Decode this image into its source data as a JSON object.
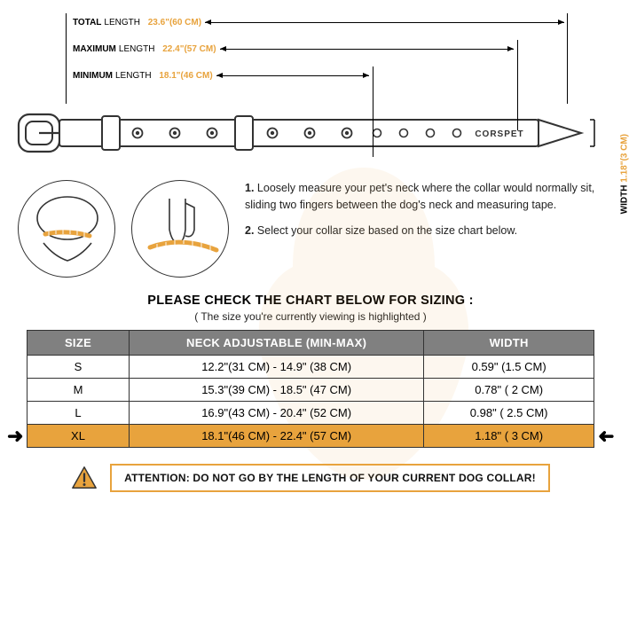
{
  "dims": {
    "total": {
      "label": "TOTAL",
      "sub": "LENGTH",
      "value": "23.6\"(60 CM)"
    },
    "max": {
      "label": "MAXIMUM",
      "sub": "LENGTH",
      "value": "22.4\"(57 CM)"
    },
    "min": {
      "label": "MINIMUM",
      "sub": "LENGTH",
      "value": "18.1\"(46 CM)"
    },
    "width": {
      "label": "WIDTH",
      "value": "1.18\"(3 CM)"
    }
  },
  "brand": "CORSPET",
  "instructions": {
    "step1_n": "1.",
    "step1": "Loosely measure your pet's neck where the collar would normally sit, sliding two fingers between the dog's neck and measuring tape.",
    "step2_n": "2.",
    "step2": "Select your collar size based on the size chart below."
  },
  "chart": {
    "title": "PLEASE CHECK THE CHART BELOW FOR SIZING :",
    "subtitle": "( The size you're currently viewing is highlighted )",
    "headers": {
      "size": "SIZE",
      "neck": "NECK ADJUSTABLE (MIN-MAX)",
      "width": "WIDTH"
    },
    "rows": [
      {
        "size": "S",
        "neck": "12.2\"(31 CM) - 14.9\" (38 CM)",
        "width": "0.59\" (1.5 CM)",
        "highlight": false
      },
      {
        "size": "M",
        "neck": "15.3\"(39 CM) - 18.5\" (47 CM)",
        "width": "0.78\" ( 2 CM)",
        "highlight": false
      },
      {
        "size": "L",
        "neck": "16.9\"(43 CM) - 20.4\" (52 CM)",
        "width": "0.98\" ( 2.5 CM)",
        "highlight": false
      },
      {
        "size": "XL",
        "neck": "18.1\"(46 CM) - 22.4\" (57 CM)",
        "width": "1.18\" ( 3 CM)",
        "highlight": true
      }
    ],
    "col_widths_pct": [
      18,
      52,
      30
    ]
  },
  "attention": "ATTENTION: DO NOT GO BY THE LENGTH OF YOUR CURRENT DOG COLLAR!",
  "colors": {
    "accent": "#e8a33d",
    "header_bg": "#808080",
    "text": "#222222",
    "border": "#333333",
    "watermark": "#e8a33d"
  }
}
